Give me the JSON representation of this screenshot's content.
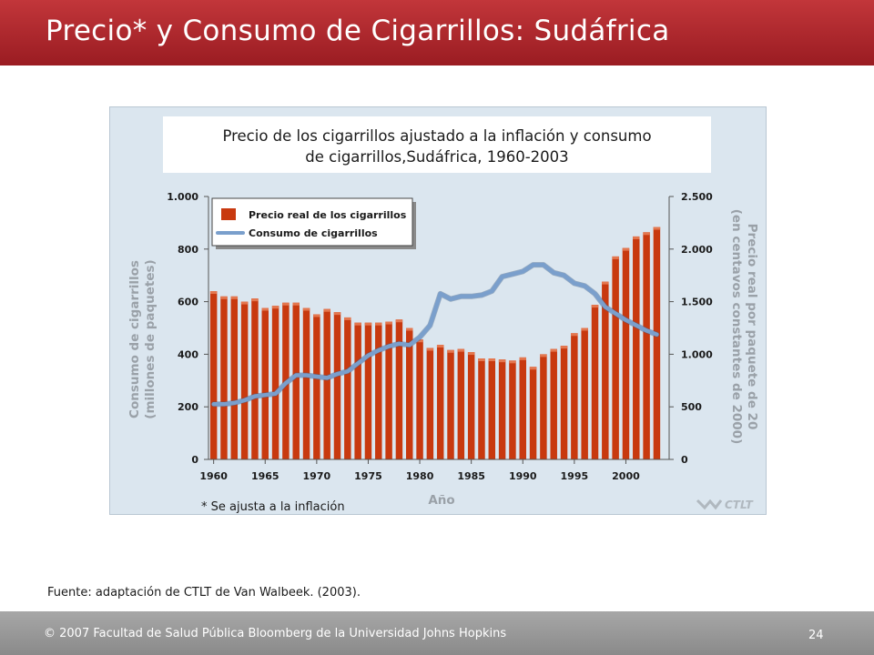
{
  "slide": {
    "title": "Precio* y Consumo de Cigarrillos: Sudáfrica",
    "source": "Fuente: adaptación de CTLT de Van Walbeek. (2003).",
    "footer": "© 2007 Facultad de Salud Pública Bloomberg de la Universidad Johns Hopkins",
    "page_number": "24"
  },
  "chart_data": {
    "type": "bar",
    "title_line1": "Precio de los cigarrillos ajustado a la inflación y consumo",
    "title_line2": "de cigarrillos,Sudáfrica, 1960-2003",
    "xlabel": "Año",
    "ylabel_left_line1": "Consumo de cigarrillos",
    "ylabel_left_line2": "(millones de paquetes)",
    "ylabel_right_line1": "Precio real por paquete de 20",
    "ylabel_right_line2": "(en centavos constantes de 2000)",
    "note": "* Se ajusta a la inflación",
    "logo": "CTLT",
    "x": [
      1960,
      1961,
      1962,
      1963,
      1964,
      1965,
      1966,
      1967,
      1968,
      1969,
      1970,
      1971,
      1972,
      1973,
      1974,
      1975,
      1976,
      1977,
      1978,
      1979,
      1980,
      1981,
      1982,
      1983,
      1984,
      1985,
      1986,
      1987,
      1988,
      1989,
      1990,
      1991,
      1992,
      1993,
      1994,
      1995,
      1996,
      1997,
      1998,
      1999,
      2000,
      2001,
      2002,
      2003
    ],
    "xticks": [
      "1960",
      "1965",
      "1970",
      "1975",
      "1980",
      "1985",
      "1990",
      "1995",
      "2000"
    ],
    "xlim": [
      1959.5,
      2004.2
    ],
    "left_axis": {
      "ylim": [
        0,
        1000
      ],
      "ticks": [
        "1.000",
        "800",
        "600",
        "400",
        "200",
        "0"
      ],
      "tick_values": [
        1000,
        800,
        600,
        400,
        200,
        0
      ]
    },
    "right_axis": {
      "ylim": [
        0,
        2500
      ],
      "ticks": [
        "2.500",
        "2.000",
        "1.500",
        "1.000",
        "500",
        "0"
      ],
      "tick_values": [
        2500,
        2000,
        1500,
        1000,
        500,
        0
      ]
    },
    "grid": false,
    "legend_position": "top-left",
    "series": [
      {
        "name": "Precio real de los cigarrillos",
        "type": "bar",
        "axis": "right",
        "color": "#c8390f",
        "values": [
          1600,
          1550,
          1550,
          1500,
          1530,
          1440,
          1460,
          1490,
          1490,
          1440,
          1380,
          1430,
          1400,
          1350,
          1300,
          1300,
          1300,
          1310,
          1330,
          1250,
          1140,
          1060,
          1090,
          1040,
          1050,
          1020,
          960,
          960,
          950,
          940,
          970,
          880,
          1000,
          1050,
          1080,
          1200,
          1250,
          1470,
          1690,
          1930,
          2010,
          2120,
          2160,
          2210
        ]
      },
      {
        "name": "Consumo de cigarrillos",
        "type": "line",
        "axis": "left",
        "color": "#7a9fcc",
        "values": [
          210,
          210,
          215,
          225,
          240,
          245,
          250,
          290,
          320,
          320,
          315,
          310,
          325,
          335,
          365,
          395,
          415,
          430,
          440,
          435,
          465,
          510,
          630,
          610,
          620,
          620,
          625,
          640,
          695,
          705,
          715,
          740,
          740,
          710,
          700,
          670,
          660,
          630,
          580,
          555,
          530,
          510,
          490,
          475
        ]
      }
    ]
  }
}
